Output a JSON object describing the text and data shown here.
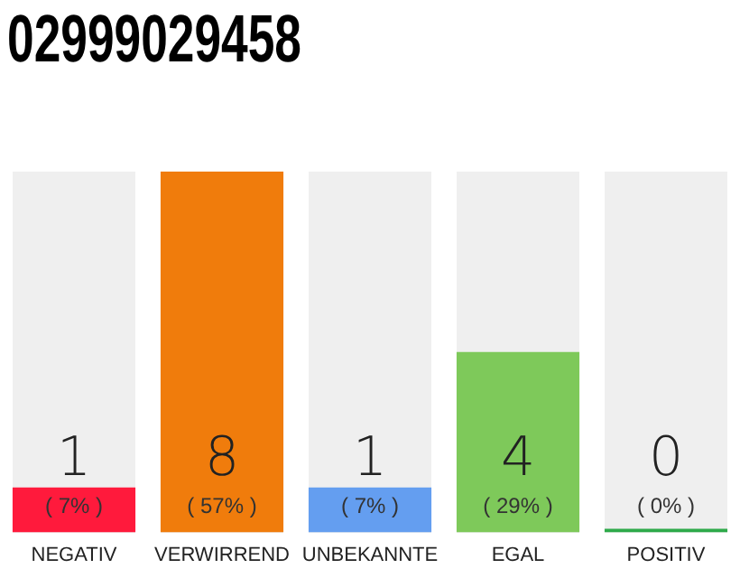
{
  "chart_data": {
    "type": "bar",
    "title": "02999029458",
    "categories": [
      "NEGATIV",
      "VERWIRREND",
      "UNBEKANNTE",
      "EGAL",
      "POSITIV"
    ],
    "values": [
      1,
      8,
      1,
      4,
      0
    ],
    "colors": [
      "#ff1a3c",
      "#f07c0c",
      "#649ef0",
      "#7ec95a",
      "#2eaa4a"
    ],
    "ylim": [
      0,
      8
    ],
    "grid": false,
    "legend": false,
    "tick_labels": "x",
    "value_labels": [
      "1\n( 7% )",
      "8\n( 57% )",
      "1\n( 7% )",
      "4\n( 29% )",
      "0\n( 0% )"
    ]
  }
}
